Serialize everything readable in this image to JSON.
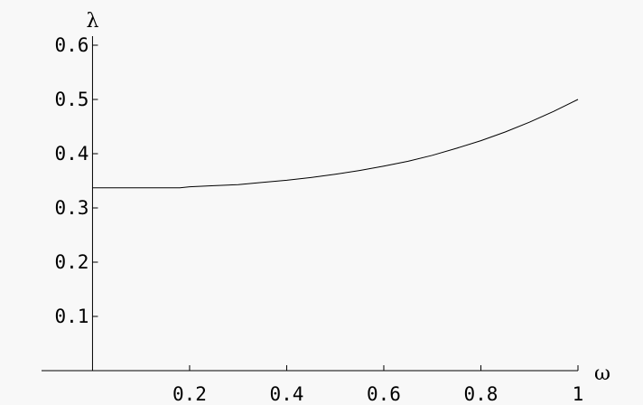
{
  "chart_data": {
    "type": "line",
    "title": "",
    "xlabel": "ω",
    "ylabel": "λ",
    "xlim": [
      -0.105,
      1.0
    ],
    "ylim": [
      0.0,
      0.6
    ],
    "x_ticks": [
      {
        "value": 0.2,
        "label": "0.2"
      },
      {
        "value": 0.4,
        "label": "0.4"
      },
      {
        "value": 0.6,
        "label": "0.6"
      },
      {
        "value": 0.8,
        "label": "0.8"
      },
      {
        "value": 1.0,
        "label": "1"
      }
    ],
    "y_ticks": [
      {
        "value": 0.1,
        "label": "0.1"
      },
      {
        "value": 0.2,
        "label": "0.2"
      },
      {
        "value": 0.3,
        "label": "0.3"
      },
      {
        "value": 0.4,
        "label": "0.4"
      },
      {
        "value": 0.5,
        "label": "0.5"
      },
      {
        "value": 0.6,
        "label": "0.6"
      }
    ],
    "grid": false,
    "series": [
      {
        "x": [
          0.0,
          0.05,
          0.1,
          0.15,
          0.18,
          0.2,
          0.25,
          0.3,
          0.35,
          0.4,
          0.45,
          0.5,
          0.55,
          0.6,
          0.65,
          0.7,
          0.75,
          0.8,
          0.85,
          0.9,
          0.95,
          1.0
        ],
        "values": [
          0.337,
          0.337,
          0.337,
          0.337,
          0.337,
          0.339,
          0.341,
          0.343,
          0.347,
          0.351,
          0.356,
          0.362,
          0.369,
          0.377,
          0.386,
          0.397,
          0.41,
          0.424,
          0.44,
          0.458,
          0.478,
          0.5
        ]
      }
    ]
  }
}
